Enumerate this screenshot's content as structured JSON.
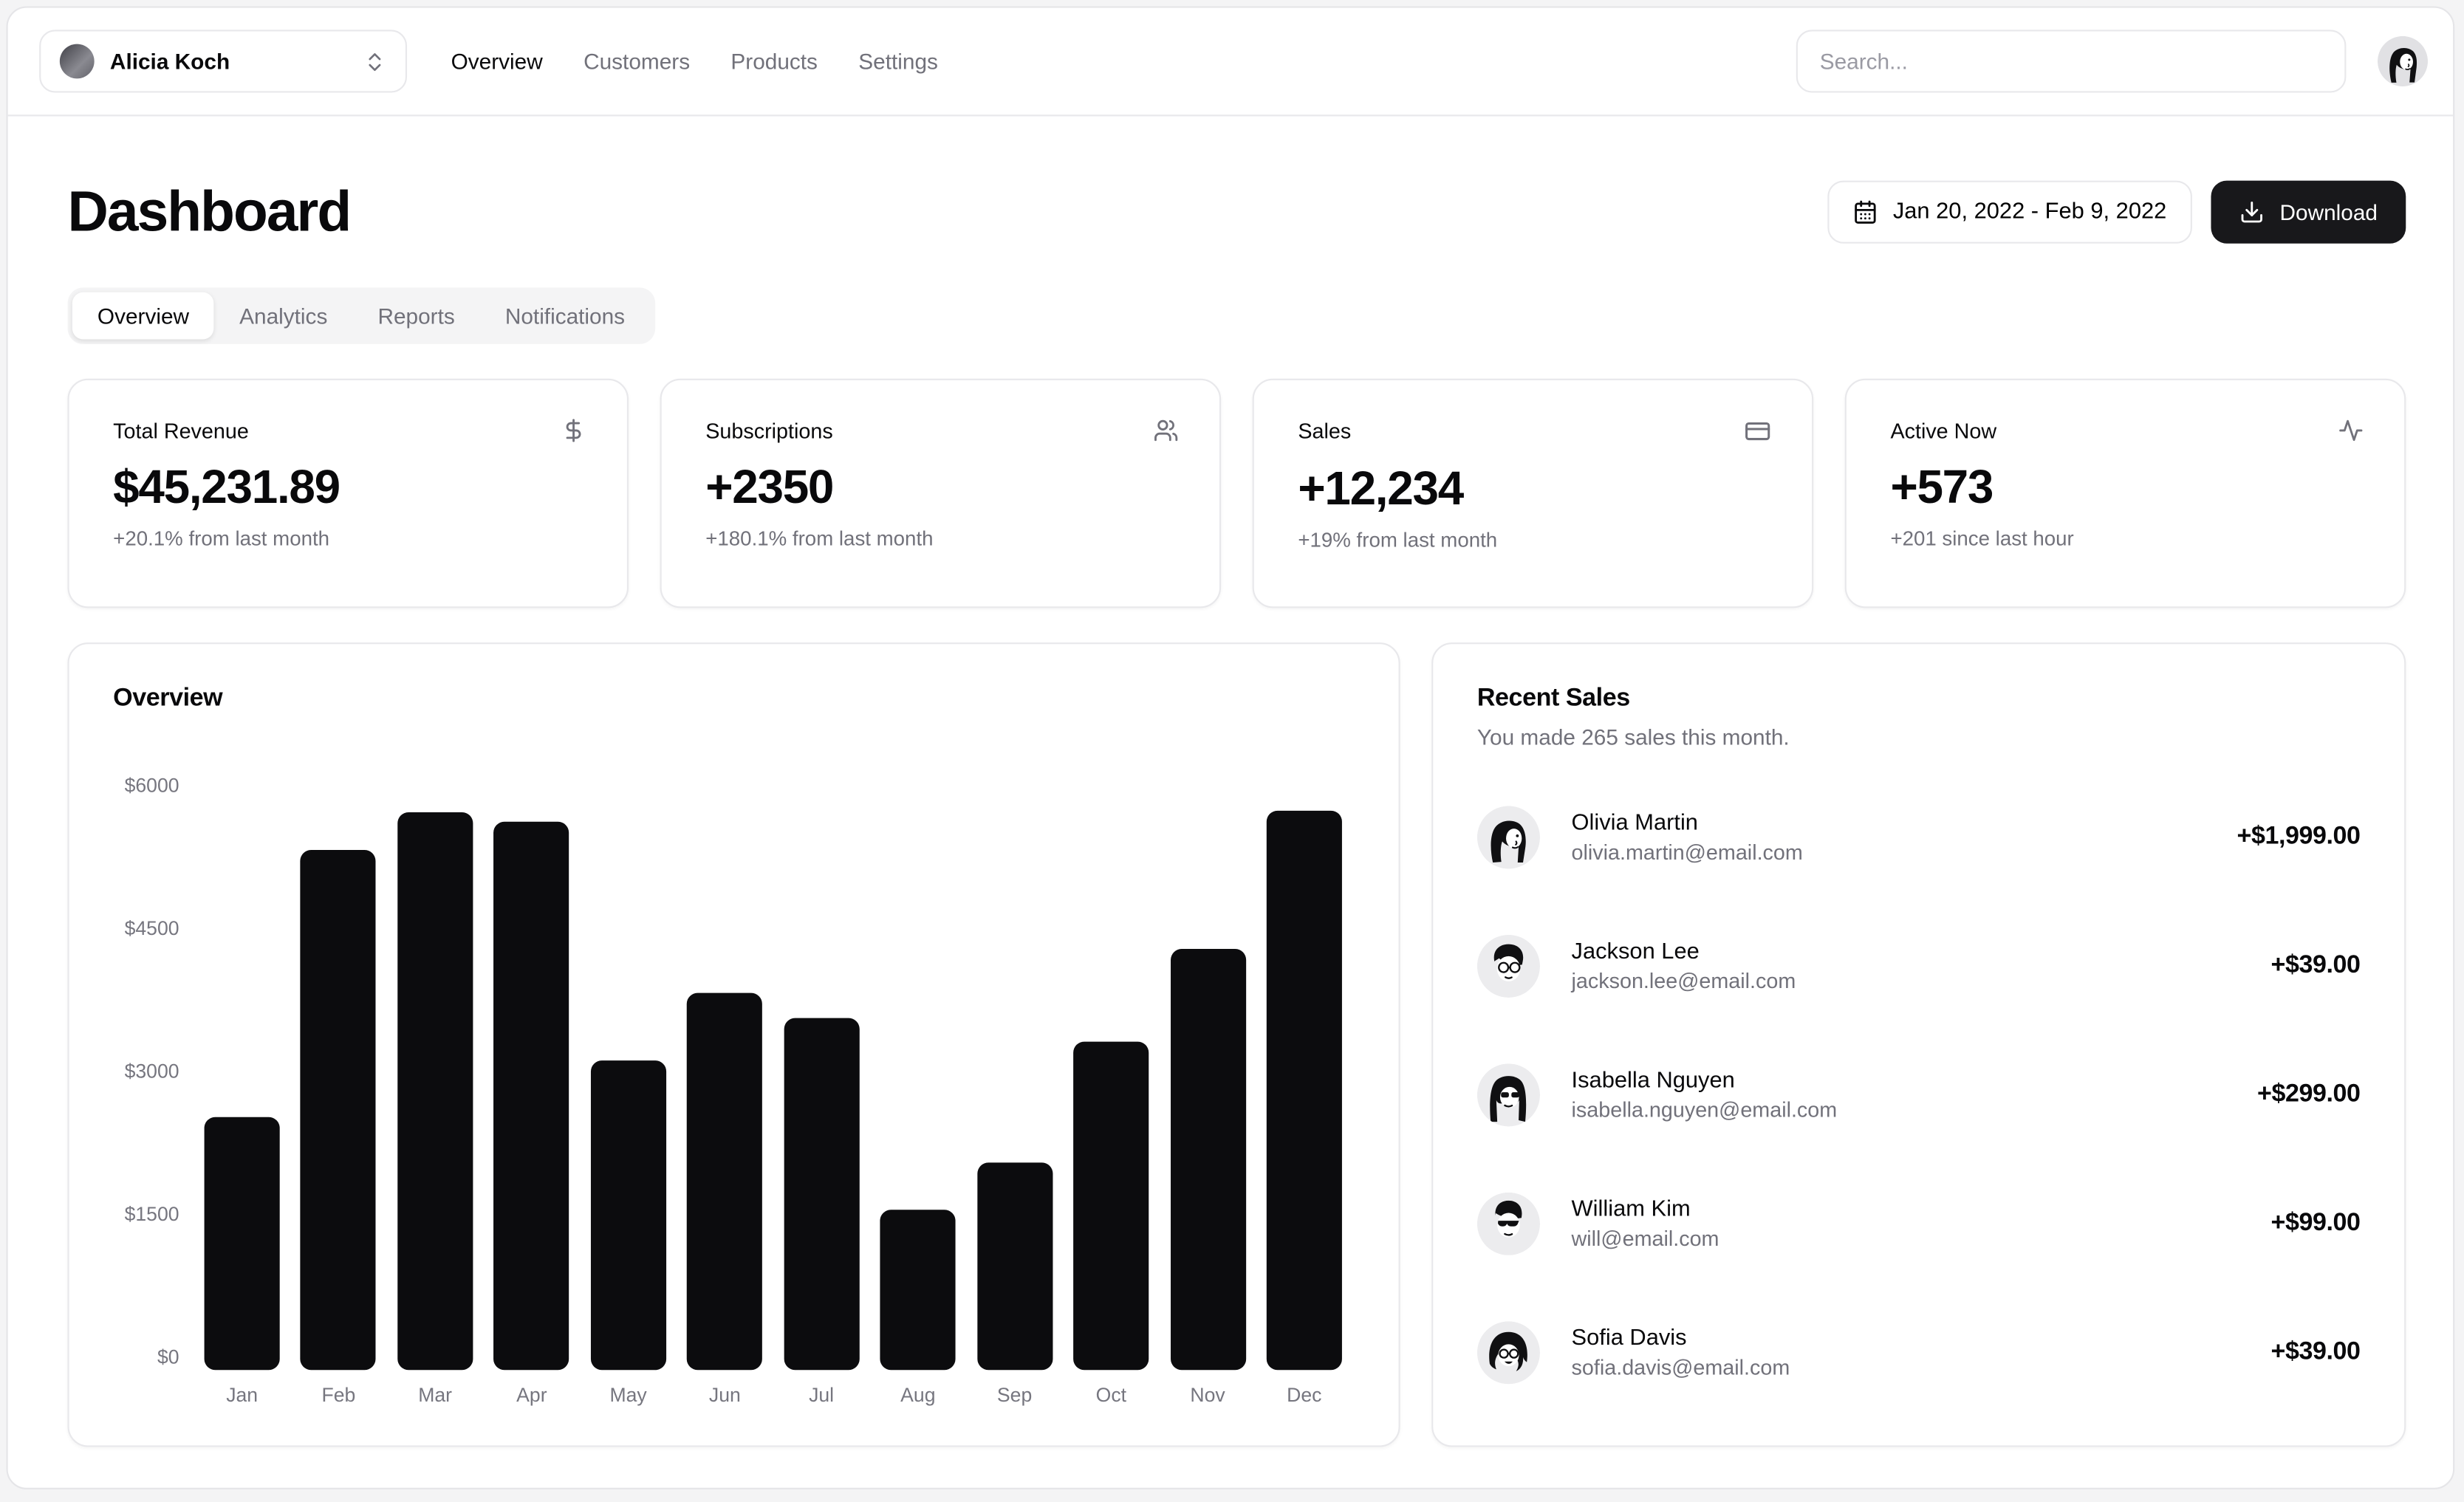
{
  "colors": {
    "accent": "#18181b",
    "border": "#e8e8eb",
    "muted": "#71717a",
    "page_background": "#f4f4f5",
    "bar": "#0c0c0e"
  },
  "header": {
    "team_name": "Alicia Koch",
    "team_switcher_icon": "chevrons-up-down-icon",
    "nav": [
      {
        "label": "Overview",
        "active": true
      },
      {
        "label": "Customers",
        "active": false
      },
      {
        "label": "Products",
        "active": false
      },
      {
        "label": "Settings",
        "active": false
      }
    ],
    "search_placeholder": "Search...",
    "user_avatar_icon": "woman-avatar-icon"
  },
  "page": {
    "title": "Dashboard",
    "date_range": "Jan 20, 2022 - Feb 9, 2022",
    "date_icon": "calendar-icon",
    "download_label": "Download",
    "download_icon": "download-icon"
  },
  "tabs": [
    {
      "label": "Overview",
      "active": true
    },
    {
      "label": "Analytics",
      "active": false
    },
    {
      "label": "Reports",
      "active": false
    },
    {
      "label": "Notifications",
      "active": false
    }
  ],
  "stats": [
    {
      "title": "Total Revenue",
      "value": "$45,231.89",
      "change": "+20.1% from last month",
      "icon": "dollar-sign-icon"
    },
    {
      "title": "Subscriptions",
      "value": "+2350",
      "change": "+180.1% from last month",
      "icon": "users-icon"
    },
    {
      "title": "Sales",
      "value": "+12,234",
      "change": "+19% from last month",
      "icon": "credit-card-icon"
    },
    {
      "title": "Active Now",
      "value": "+573",
      "change": "+201 since last hour",
      "icon": "activity-icon"
    }
  ],
  "chart_data": {
    "type": "bar",
    "title": "Overview",
    "categories": [
      "Jan",
      "Feb",
      "Mar",
      "Apr",
      "May",
      "Jun",
      "Jul",
      "Aug",
      "Sep",
      "Oct",
      "Nov",
      "Dec"
    ],
    "values": [
      2650,
      5450,
      5850,
      5750,
      3250,
      3950,
      3700,
      1680,
      2170,
      3450,
      4420,
      5860
    ],
    "xlabel": "",
    "ylabel": "",
    "ylim": [
      0,
      6000
    ],
    "ticks": [
      {
        "value": 6000,
        "label": "$6000"
      },
      {
        "value": 4500,
        "label": "$4500"
      },
      {
        "value": 3000,
        "label": "$3000"
      },
      {
        "value": 1500,
        "label": "$1500"
      },
      {
        "value": 0,
        "label": "$0"
      }
    ],
    "grid": false,
    "legend": false,
    "bar_color": "#0c0c0e"
  },
  "recent_sales": {
    "title": "Recent Sales",
    "subtitle": "You made 265 sales this month.",
    "items": [
      {
        "name": "Olivia Martin",
        "email": "olivia.martin@email.com",
        "amount": "+$1,999.00",
        "avatar": "olivia"
      },
      {
        "name": "Jackson Lee",
        "email": "jackson.lee@email.com",
        "amount": "+$39.00",
        "avatar": "jackson"
      },
      {
        "name": "Isabella Nguyen",
        "email": "isabella.nguyen@email.com",
        "amount": "+$299.00",
        "avatar": "isabella"
      },
      {
        "name": "William Kim",
        "email": "will@email.com",
        "amount": "+$99.00",
        "avatar": "william"
      },
      {
        "name": "Sofia Davis",
        "email": "sofia.davis@email.com",
        "amount": "+$39.00",
        "avatar": "sofia"
      }
    ]
  }
}
